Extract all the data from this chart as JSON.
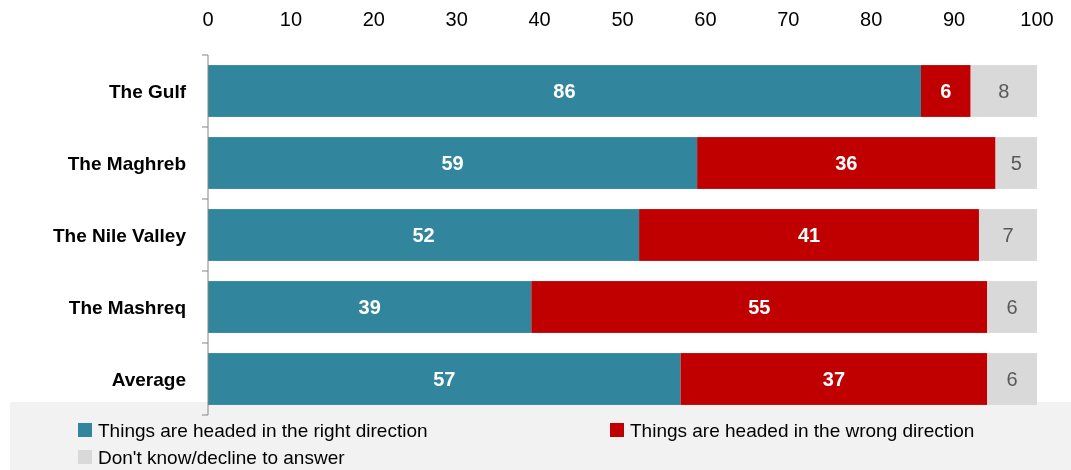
{
  "chart_data": {
    "type": "bar",
    "orientation": "horizontal",
    "stacked": true,
    "categories": [
      "The Gulf",
      "The Maghreb",
      "The Nile Valley",
      "The Mashreq",
      "Average"
    ],
    "series": [
      {
        "name": "Things are headed in the right direction",
        "color": "#31859c",
        "values": [
          86,
          59,
          52,
          39,
          57
        ]
      },
      {
        "name": "Things are headed in the wrong direction",
        "color": "#c00000",
        "values": [
          6,
          36,
          41,
          55,
          37
        ]
      },
      {
        "name": "Don't know/decline to answer",
        "color": "#d9d9d9",
        "values": [
          8,
          5,
          7,
          6,
          6
        ]
      }
    ],
    "xlim": [
      0,
      100
    ],
    "xticks": [
      0,
      10,
      20,
      30,
      40,
      50,
      60,
      70,
      80,
      90,
      100
    ],
    "data_labels": true,
    "legend": "bottom",
    "grid": false
  }
}
